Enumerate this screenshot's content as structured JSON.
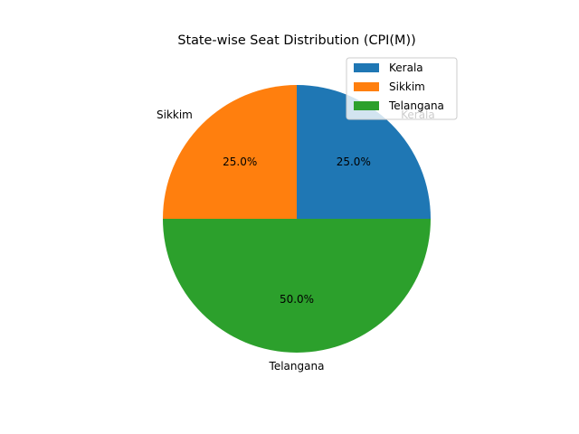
{
  "chart_data": {
    "type": "pie",
    "title": "State-wise Seat Distribution (CPI(M))",
    "categories": [
      "Kerala",
      "Sikkim",
      "Telangana"
    ],
    "values": [
      25.0,
      25.0,
      50.0
    ],
    "percent_labels": [
      "25.0%",
      "25.0%",
      "50.0%"
    ],
    "colors": [
      "#1f77b4",
      "#ff7f0e",
      "#2ca02c"
    ],
    "start_angle_deg": 0,
    "legend_position": "upper-right"
  }
}
